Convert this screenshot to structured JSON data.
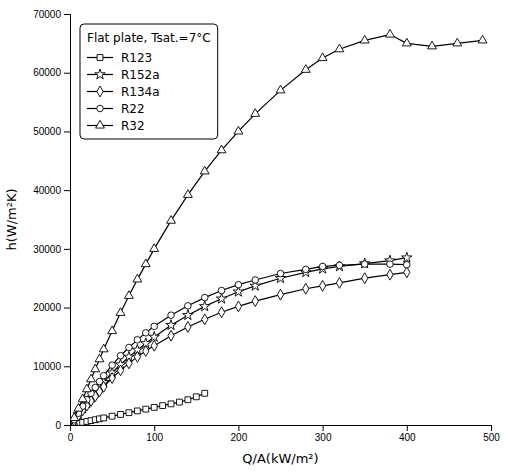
{
  "chart_data": {
    "type": "line",
    "title": "Flat plate, Tsat.=7°C",
    "xlabel": "Q/A(kW/m²)",
    "ylabel": "h(W/m²K)",
    "xlim": [
      0,
      500
    ],
    "ylim": [
      0,
      70000
    ],
    "xticks": [
      0,
      100,
      200,
      300,
      400,
      500
    ],
    "yticks": [
      0,
      10000,
      20000,
      30000,
      40000,
      50000,
      60000,
      70000
    ],
    "grid": false,
    "legend": "upper-left",
    "series": [
      {
        "name": "R123",
        "marker": "square",
        "color": "#000000",
        "x": [
          5,
          10,
          15,
          20,
          25,
          30,
          35,
          40,
          50,
          60,
          70,
          80,
          90,
          100,
          110,
          120,
          130,
          140,
          150,
          160
        ],
        "values": [
          150,
          300,
          450,
          600,
          750,
          900,
          1050,
          1200,
          1500,
          1800,
          2100,
          2400,
          2700,
          3000,
          3300,
          3600,
          3900,
          4300,
          4800,
          5400
        ]
      },
      {
        "name": "R152a",
        "marker": "star",
        "color": "#000000",
        "x": [
          5,
          10,
          15,
          20,
          25,
          30,
          35,
          40,
          50,
          60,
          70,
          80,
          90,
          100,
          120,
          140,
          160,
          180,
          200,
          220,
          250,
          280,
          300,
          320,
          350,
          380,
          400
        ],
        "values": [
          800,
          1800,
          2800,
          3700,
          4600,
          5500,
          6400,
          7300,
          8900,
          10300,
          11600,
          12800,
          13900,
          15000,
          17000,
          18700,
          20200,
          21500,
          22700,
          23700,
          25000,
          26000,
          26600,
          27000,
          27500,
          28000,
          28500
        ]
      },
      {
        "name": "R134a",
        "marker": "diamond",
        "color": "#000000",
        "x": [
          5,
          10,
          15,
          20,
          25,
          30,
          35,
          40,
          50,
          60,
          70,
          80,
          90,
          100,
          120,
          140,
          160,
          180,
          200,
          220,
          250,
          280,
          300,
          320,
          350,
          380,
          400
        ],
        "values": [
          700,
          1600,
          2500,
          3300,
          4100,
          4900,
          5700,
          6500,
          8000,
          9300,
          10500,
          11600,
          12600,
          13500,
          15200,
          16700,
          18000,
          19200,
          20200,
          21100,
          22200,
          23200,
          23700,
          24200,
          25000,
          25600,
          26000
        ]
      },
      {
        "name": "R22",
        "marker": "circle",
        "color": "#000000",
        "x": [
          5,
          10,
          15,
          20,
          25,
          30,
          35,
          40,
          50,
          60,
          70,
          80,
          90,
          100,
          120,
          140,
          160,
          180,
          200,
          220,
          250,
          280,
          300,
          320,
          350,
          380,
          400
        ],
        "values": [
          900,
          2000,
          3200,
          4300,
          5400,
          6400,
          7400,
          8400,
          10200,
          11800,
          13200,
          14500,
          15700,
          16800,
          18700,
          20300,
          21700,
          22900,
          23900,
          24700,
          25800,
          26500,
          27000,
          27200,
          27400,
          27400,
          27300
        ]
      },
      {
        "name": "R32",
        "marker": "triangle",
        "color": "#000000",
        "x": [
          5,
          10,
          15,
          20,
          25,
          30,
          35,
          40,
          50,
          60,
          70,
          80,
          90,
          100,
          120,
          140,
          160,
          180,
          200,
          220,
          250,
          280,
          300,
          320,
          350,
          380,
          400,
          430,
          460,
          490
        ],
        "values": [
          1200,
          2800,
          4400,
          6100,
          7800,
          9500,
          11200,
          12900,
          16000,
          19100,
          22000,
          24800,
          27400,
          30000,
          34800,
          39200,
          43200,
          46800,
          50000,
          53000,
          57000,
          60500,
          62500,
          64000,
          65500,
          66500,
          65000,
          64500,
          65000,
          65500
        ]
      }
    ]
  }
}
